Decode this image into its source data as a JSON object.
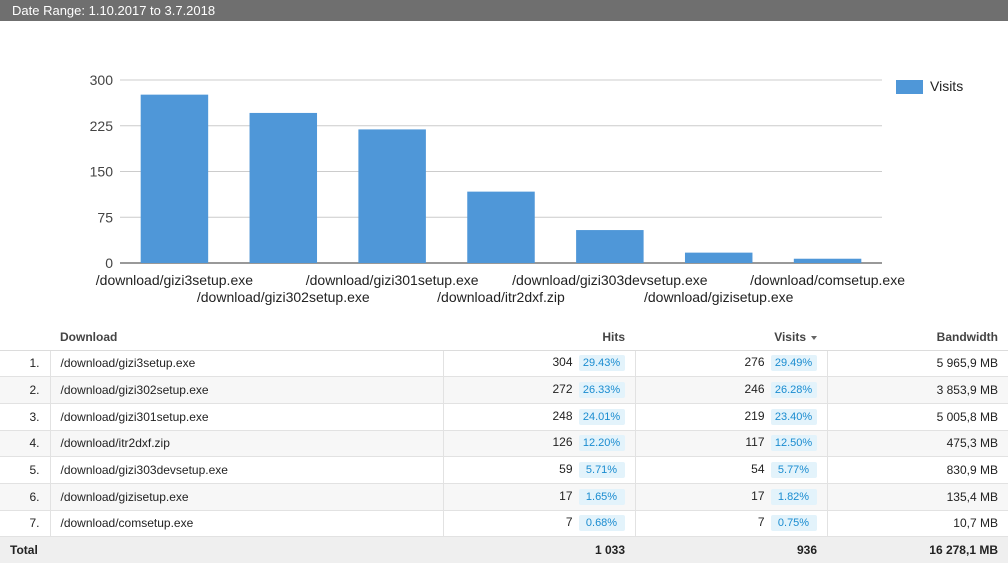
{
  "header": {
    "date_range": "Date Range: 1.10.2017 to 3.7.2018"
  },
  "chart_data": {
    "type": "bar",
    "categories": [
      "/download/gizi3setup.exe",
      "/download/gizi302setup.exe",
      "/download/gizi301setup.exe",
      "/download/itr2dxf.zip",
      "/download/gizi303devsetup.exe",
      "/download/gizisetup.exe",
      "/download/comsetup.exe"
    ],
    "series": [
      {
        "name": "Visits",
        "values": [
          276,
          246,
          219,
          117,
          54,
          17,
          7
        ]
      }
    ],
    "yticks": [
      "0",
      "75",
      "150",
      "225",
      "300"
    ],
    "ylim": [
      0,
      300
    ],
    "legend": "right",
    "grid": true,
    "bar_color": "#4f97d8"
  },
  "table": {
    "columns": {
      "download": "Download",
      "hits": "Hits",
      "visits": "Visits",
      "bandwidth": "Bandwidth"
    },
    "sorted_by": "Visits",
    "rows": [
      {
        "idx": "1.",
        "name": "/download/gizi3setup.exe",
        "hits": "304",
        "hits_pct": "29.43%",
        "visits": "276",
        "visits_pct": "29.49%",
        "bandwidth": "5 965,9 MB"
      },
      {
        "idx": "2.",
        "name": "/download/gizi302setup.exe",
        "hits": "272",
        "hits_pct": "26.33%",
        "visits": "246",
        "visits_pct": "26.28%",
        "bandwidth": "3 853,9 MB"
      },
      {
        "idx": "3.",
        "name": "/download/gizi301setup.exe",
        "hits": "248",
        "hits_pct": "24.01%",
        "visits": "219",
        "visits_pct": "23.40%",
        "bandwidth": "5 005,8 MB"
      },
      {
        "idx": "4.",
        "name": "/download/itr2dxf.zip",
        "hits": "126",
        "hits_pct": "12.20%",
        "visits": "117",
        "visits_pct": "12.50%",
        "bandwidth": "475,3 MB"
      },
      {
        "idx": "5.",
        "name": "/download/gizi303devsetup.exe",
        "hits": "59",
        "hits_pct": "5.71%",
        "visits": "54",
        "visits_pct": "5.77%",
        "bandwidth": "830,9 MB"
      },
      {
        "idx": "6.",
        "name": "/download/gizisetup.exe",
        "hits": "17",
        "hits_pct": "1.65%",
        "visits": "17",
        "visits_pct": "1.82%",
        "bandwidth": "135,4 MB"
      },
      {
        "idx": "7.",
        "name": "/download/comsetup.exe",
        "hits": "7",
        "hits_pct": "0.68%",
        "visits": "7",
        "visits_pct": "0.75%",
        "bandwidth": "10,7 MB"
      }
    ],
    "total": {
      "label": "Total",
      "hits": "1 033",
      "visits": "936",
      "bandwidth": "16 278,1 MB"
    }
  }
}
